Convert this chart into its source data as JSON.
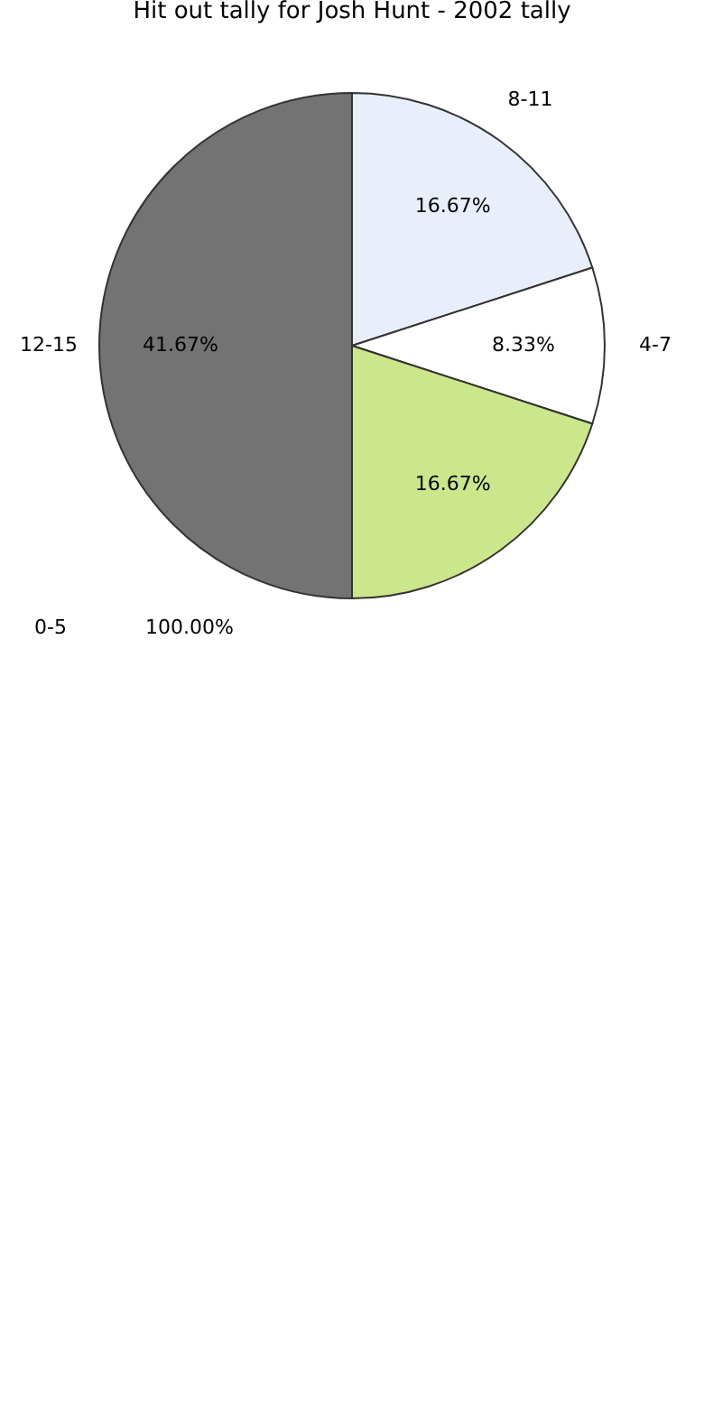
{
  "chart_data": {
    "type": "pie",
    "title": "Hit out tally for Josh Hunt - 2002 tally",
    "categories": [
      "8-11",
      "4-7",
      null,
      "12-15"
    ],
    "values": [
      16.67,
      8.33,
      16.67,
      41.67
    ],
    "value_labels": [
      "16.67%",
      "8.33%",
      "16.67%",
      "41.67%"
    ],
    "colors": [
      "#e8effb",
      "#ffffff",
      "#cce68c",
      "#737373"
    ],
    "annotations": [
      "0-5",
      "100.00%"
    ],
    "legend": false
  }
}
